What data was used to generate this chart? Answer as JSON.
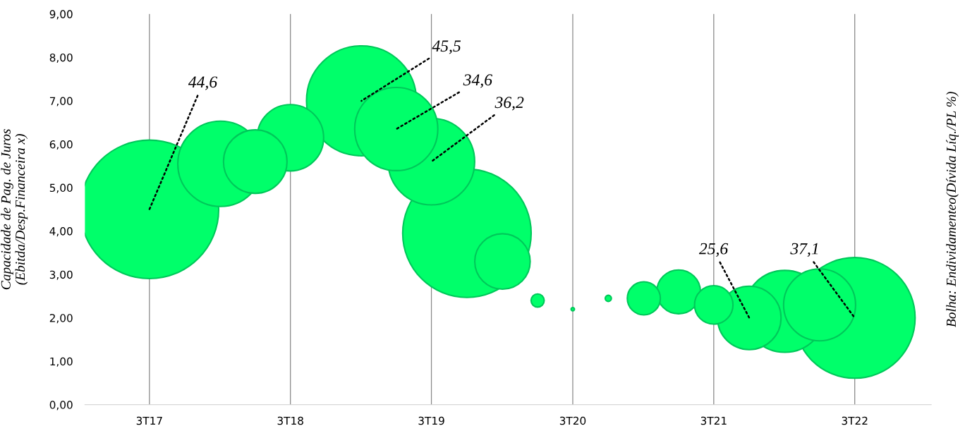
{
  "chart_data": {
    "type": "bubble",
    "ylabel": "Capacidade de Pag. de Juros\n(Ebitda/Desp.Financeira x)",
    "x": [
      "2017-07",
      "2018-01",
      "2018-04",
      "2018-07",
      "2019-01",
      "2019-04",
      "2019-07",
      "2019-10",
      "2020-01",
      "2020-04",
      "2020-07",
      "2020-10",
      "2021-01",
      "2021-04",
      "2021-07",
      "2021-10",
      "2022-01",
      "2022-04",
      "2022-07"
    ],
    "series": [
      {
        "color": "#00ff6a",
        "values": [
          4.5,
          5.55,
          5.6,
          6.15,
          7.0,
          6.35,
          5.6,
          3.95,
          3.3,
          2.4,
          2.2,
          2.45,
          2.45,
          2.6,
          2.3,
          2.0,
          2.15,
          2.3,
          2.0
        ],
        "sizes": [
          1.0,
          0.38,
          0.21,
          0.23,
          0.63,
          0.36,
          0.39,
          0.86,
          0.16,
          0.009,
          0.0006,
          0.002,
          0.057,
          0.1,
          0.077,
          0.21,
          0.35,
          0.27,
          0.76
        ]
      }
    ],
    "xlim": [
      "2017-01-15",
      "2023-01-15"
    ],
    "xticks": [
      {
        "value": "2017-07",
        "label": "3T17"
      },
      {
        "value": "2018-07",
        "label": "3T18"
      },
      {
        "value": "2019-07",
        "label": "3T19"
      },
      {
        "value": "2020-07",
        "label": "3T20"
      },
      {
        "value": "2021-07",
        "label": "3T21"
      },
      {
        "value": "2022-07",
        "label": "3T22"
      }
    ],
    "ylim": [
      0,
      9
    ],
    "yticks": [
      {
        "value": 0,
        "label": "0,00"
      },
      {
        "value": 1,
        "label": "1,00"
      },
      {
        "value": 2,
        "label": "2,00"
      },
      {
        "value": 3,
        "label": "3,00"
      },
      {
        "value": 4,
        "label": "4,00"
      },
      {
        "value": 5,
        "label": "5,00"
      },
      {
        "value": 6,
        "label": "6,00"
      },
      {
        "value": 7,
        "label": "7,00"
      },
      {
        "value": 8,
        "label": "8,00"
      },
      {
        "value": 9,
        "label": "9,00"
      }
    ],
    "grid": "x",
    "annotations": [
      {
        "text": "44,6",
        "x": "2017-07",
        "y": 4.5
      },
      {
        "text": "45,5",
        "x": "2019-01",
        "y": 7.0
      },
      {
        "text": "34,6",
        "x": "2019-04",
        "y": 6.35
      },
      {
        "text": "36,2",
        "x": "2019-07",
        "y": 5.6
      },
      {
        "text": "25,6",
        "x": "2021-10",
        "y": 2.0
      },
      {
        "text": "37,1",
        "x": "2022-07",
        "y": 2.0
      },
      "Bolha: Endividamenteo(Dívida Líq./PL %)"
    ]
  }
}
